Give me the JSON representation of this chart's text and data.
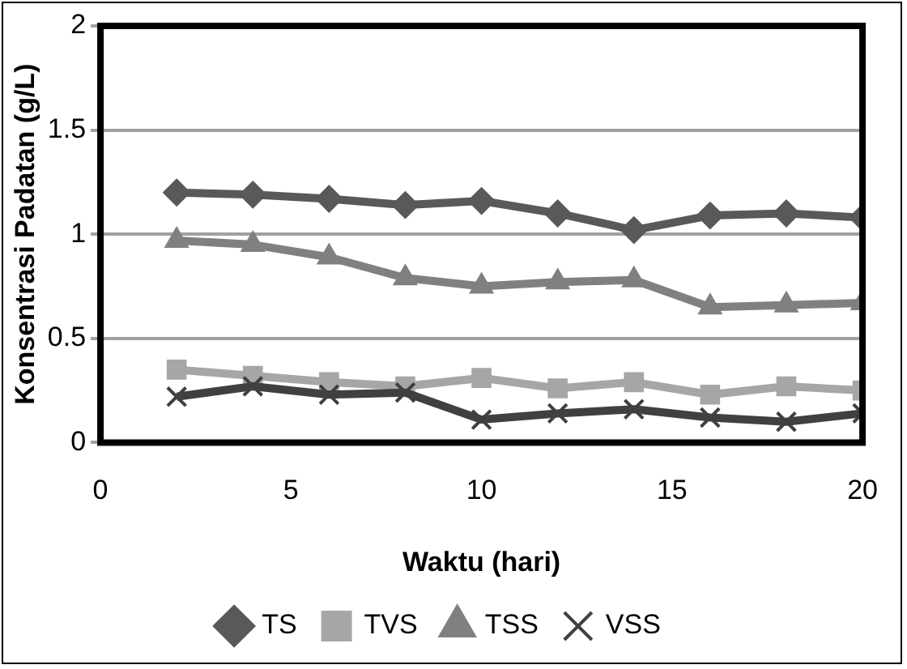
{
  "chart_data": {
    "type": "line",
    "xlabel": "Waktu (hari)",
    "ylabel": "Konsentrasi Padatan (g/L)",
    "x": [
      2,
      4,
      6,
      8,
      10,
      12,
      14,
      16,
      18,
      20
    ],
    "series": [
      {
        "name": "TS",
        "color": "#595959",
        "marker": "diamond",
        "values": [
          1.2,
          1.19,
          1.17,
          1.14,
          1.16,
          1.1,
          1.02,
          1.09,
          1.1,
          1.08
        ]
      },
      {
        "name": "TVS",
        "color": "#a6a6a6",
        "marker": "square",
        "values": [
          0.35,
          0.32,
          0.29,
          0.27,
          0.31,
          0.26,
          0.29,
          0.23,
          0.27,
          0.25
        ]
      },
      {
        "name": "TSS",
        "color": "#808080",
        "marker": "triangle",
        "values": [
          0.97,
          0.95,
          0.89,
          0.79,
          0.75,
          0.77,
          0.78,
          0.65,
          0.66,
          0.67
        ]
      },
      {
        "name": "VSS",
        "color": "#404040",
        "marker": "cross",
        "values": [
          0.22,
          0.27,
          0.23,
          0.24,
          0.11,
          0.14,
          0.16,
          0.12,
          0.1,
          0.14
        ]
      }
    ],
    "xlim": [
      0,
      20
    ],
    "xticks": [
      0,
      5,
      10,
      15,
      20
    ],
    "ylim": [
      0,
      2
    ],
    "yticks": [
      0,
      0.5,
      1,
      1.5,
      2
    ],
    "grid": "y",
    "legend": "bottom",
    "line_style": "solid"
  }
}
